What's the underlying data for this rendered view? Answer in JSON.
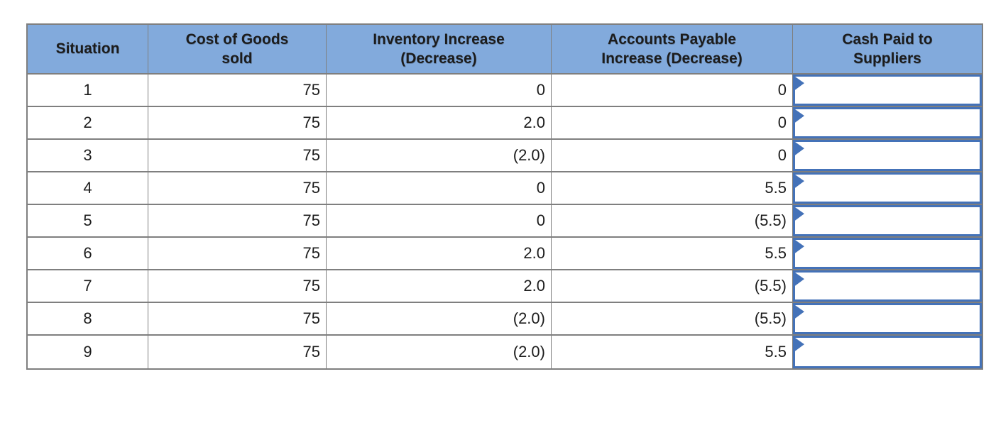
{
  "table": {
    "headers": [
      "Situation",
      "Cost of Goods sold",
      "Inventory Increase (Decrease)",
      "Accounts Payable Increase (Decrease)",
      "Cash Paid to Suppliers"
    ],
    "rows": [
      {
        "situation": "1",
        "cogs": "75",
        "inventory": "0",
        "ap": "0",
        "cash": ""
      },
      {
        "situation": "2",
        "cogs": "75",
        "inventory": "2.0",
        "ap": "0",
        "cash": ""
      },
      {
        "situation": "3",
        "cogs": "75",
        "inventory": "(2.0)",
        "ap": "0",
        "cash": ""
      },
      {
        "situation": "4",
        "cogs": "75",
        "inventory": "0",
        "ap": "5.5",
        "cash": ""
      },
      {
        "situation": "5",
        "cogs": "75",
        "inventory": "0",
        "ap": "(5.5)",
        "cash": ""
      },
      {
        "situation": "6",
        "cogs": "75",
        "inventory": "2.0",
        "ap": "5.5",
        "cash": ""
      },
      {
        "situation": "7",
        "cogs": "75",
        "inventory": "2.0",
        "ap": "(5.5)",
        "cash": ""
      },
      {
        "situation": "8",
        "cogs": "75",
        "inventory": "(2.0)",
        "ap": "(5.5)",
        "cash": ""
      },
      {
        "situation": "9",
        "cogs": "75",
        "inventory": "(2.0)",
        "ap": "5.5",
        "cash": ""
      }
    ]
  },
  "icons": {
    "answer_flag": "answer-flag-triangle"
  },
  "colors": {
    "header_bg": "#82aadc",
    "grid_border": "#7f7f7f",
    "input_border": "#4472b8",
    "text": "#1c1c1c"
  }
}
